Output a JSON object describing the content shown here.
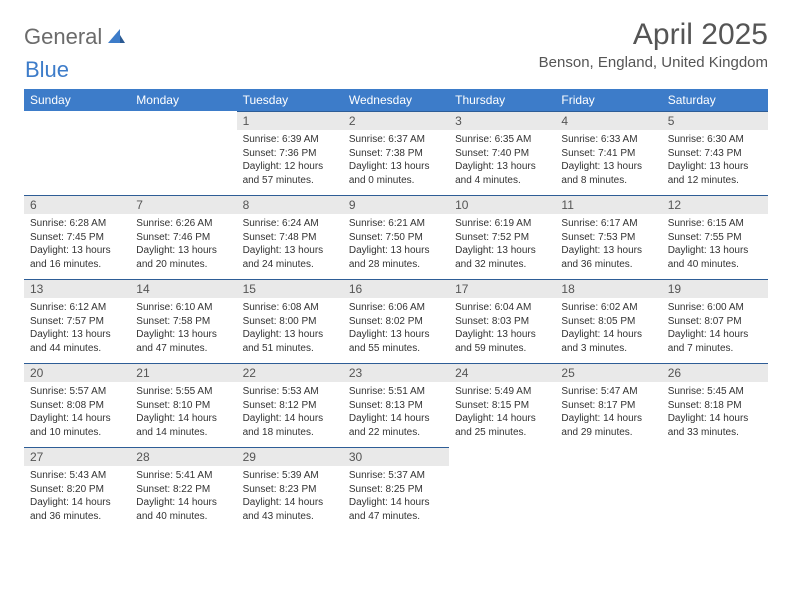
{
  "logo": {
    "part1": "General",
    "part2": "Blue"
  },
  "title": "April 2025",
  "location": "Benson, England, United Kingdom",
  "colors": {
    "header_bg": "#3d7cc9",
    "daynum_bg": "#e9e9e9",
    "row_border": "#2e5d96",
    "text": "#333333",
    "muted": "#555555"
  },
  "weekdays": [
    "Sunday",
    "Monday",
    "Tuesday",
    "Wednesday",
    "Thursday",
    "Friday",
    "Saturday"
  ],
  "weeks": [
    [
      null,
      null,
      {
        "n": "1",
        "sunrise": "6:39 AM",
        "sunset": "7:36 PM",
        "day_h": "12",
        "day_m": "57"
      },
      {
        "n": "2",
        "sunrise": "6:37 AM",
        "sunset": "7:38 PM",
        "day_h": "13",
        "day_m": "0"
      },
      {
        "n": "3",
        "sunrise": "6:35 AM",
        "sunset": "7:40 PM",
        "day_h": "13",
        "day_m": "4"
      },
      {
        "n": "4",
        "sunrise": "6:33 AM",
        "sunset": "7:41 PM",
        "day_h": "13",
        "day_m": "8"
      },
      {
        "n": "5",
        "sunrise": "6:30 AM",
        "sunset": "7:43 PM",
        "day_h": "13",
        "day_m": "12"
      }
    ],
    [
      {
        "n": "6",
        "sunrise": "6:28 AM",
        "sunset": "7:45 PM",
        "day_h": "13",
        "day_m": "16"
      },
      {
        "n": "7",
        "sunrise": "6:26 AM",
        "sunset": "7:46 PM",
        "day_h": "13",
        "day_m": "20"
      },
      {
        "n": "8",
        "sunrise": "6:24 AM",
        "sunset": "7:48 PM",
        "day_h": "13",
        "day_m": "24"
      },
      {
        "n": "9",
        "sunrise": "6:21 AM",
        "sunset": "7:50 PM",
        "day_h": "13",
        "day_m": "28"
      },
      {
        "n": "10",
        "sunrise": "6:19 AM",
        "sunset": "7:52 PM",
        "day_h": "13",
        "day_m": "32"
      },
      {
        "n": "11",
        "sunrise": "6:17 AM",
        "sunset": "7:53 PM",
        "day_h": "13",
        "day_m": "36"
      },
      {
        "n": "12",
        "sunrise": "6:15 AM",
        "sunset": "7:55 PM",
        "day_h": "13",
        "day_m": "40"
      }
    ],
    [
      {
        "n": "13",
        "sunrise": "6:12 AM",
        "sunset": "7:57 PM",
        "day_h": "13",
        "day_m": "44"
      },
      {
        "n": "14",
        "sunrise": "6:10 AM",
        "sunset": "7:58 PM",
        "day_h": "13",
        "day_m": "47"
      },
      {
        "n": "15",
        "sunrise": "6:08 AM",
        "sunset": "8:00 PM",
        "day_h": "13",
        "day_m": "51"
      },
      {
        "n": "16",
        "sunrise": "6:06 AM",
        "sunset": "8:02 PM",
        "day_h": "13",
        "day_m": "55"
      },
      {
        "n": "17",
        "sunrise": "6:04 AM",
        "sunset": "8:03 PM",
        "day_h": "13",
        "day_m": "59"
      },
      {
        "n": "18",
        "sunrise": "6:02 AM",
        "sunset": "8:05 PM",
        "day_h": "14",
        "day_m": "3"
      },
      {
        "n": "19",
        "sunrise": "6:00 AM",
        "sunset": "8:07 PM",
        "day_h": "14",
        "day_m": "7"
      }
    ],
    [
      {
        "n": "20",
        "sunrise": "5:57 AM",
        "sunset": "8:08 PM",
        "day_h": "14",
        "day_m": "10"
      },
      {
        "n": "21",
        "sunrise": "5:55 AM",
        "sunset": "8:10 PM",
        "day_h": "14",
        "day_m": "14"
      },
      {
        "n": "22",
        "sunrise": "5:53 AM",
        "sunset": "8:12 PM",
        "day_h": "14",
        "day_m": "18"
      },
      {
        "n": "23",
        "sunrise": "5:51 AM",
        "sunset": "8:13 PM",
        "day_h": "14",
        "day_m": "22"
      },
      {
        "n": "24",
        "sunrise": "5:49 AM",
        "sunset": "8:15 PM",
        "day_h": "14",
        "day_m": "25"
      },
      {
        "n": "25",
        "sunrise": "5:47 AM",
        "sunset": "8:17 PM",
        "day_h": "14",
        "day_m": "29"
      },
      {
        "n": "26",
        "sunrise": "5:45 AM",
        "sunset": "8:18 PM",
        "day_h": "14",
        "day_m": "33"
      }
    ],
    [
      {
        "n": "27",
        "sunrise": "5:43 AM",
        "sunset": "8:20 PM",
        "day_h": "14",
        "day_m": "36"
      },
      {
        "n": "28",
        "sunrise": "5:41 AM",
        "sunset": "8:22 PM",
        "day_h": "14",
        "day_m": "40"
      },
      {
        "n": "29",
        "sunrise": "5:39 AM",
        "sunset": "8:23 PM",
        "day_h": "14",
        "day_m": "43"
      },
      {
        "n": "30",
        "sunrise": "5:37 AM",
        "sunset": "8:25 PM",
        "day_h": "14",
        "day_m": "47"
      },
      null,
      null,
      null
    ]
  ],
  "labels": {
    "sunrise": "Sunrise:",
    "sunset": "Sunset:",
    "daylight_prefix": "Daylight:",
    "hours": "hours",
    "and": "and",
    "minutes": "minutes."
  }
}
